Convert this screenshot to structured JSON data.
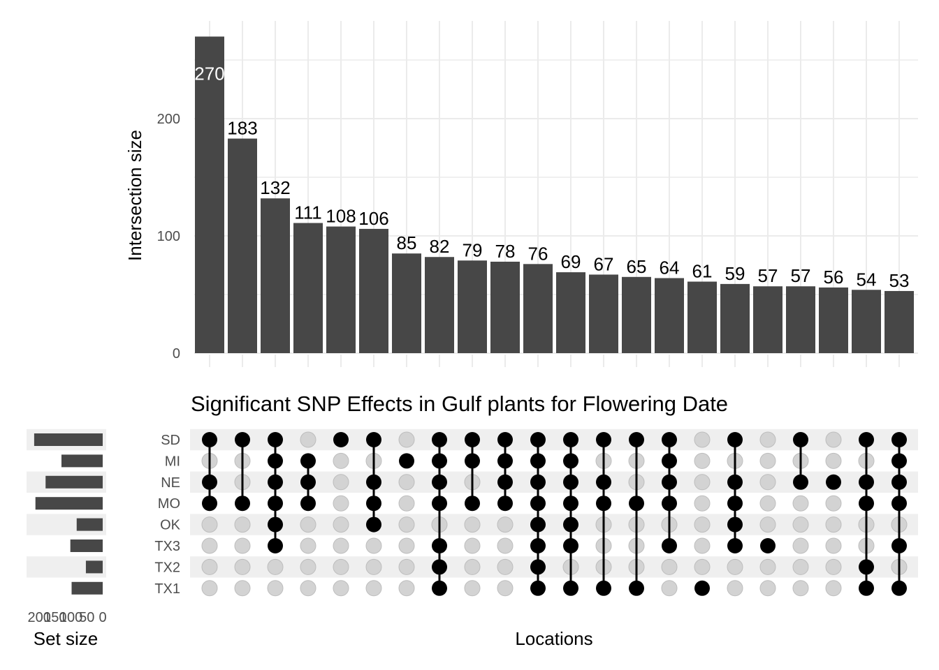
{
  "chart_data": {
    "type": "upset",
    "title": "Significant SNP Effects in Gulf plants for Flowering Date",
    "ylabel": "Intersection size",
    "xlabel": "Locations",
    "set_size_label": "Set size",
    "ylim": [
      0,
      280
    ],
    "y_ticks": [
      0,
      100,
      200
    ],
    "set_size_ticks": [
      "200",
      "150",
      "100",
      "50",
      "0"
    ],
    "set_size_max": 240,
    "grid": true,
    "sets": [
      "SD",
      "MI",
      "NE",
      "MO",
      "OK",
      "TX3",
      "TX2",
      "TX1"
    ],
    "set_sizes": [
      216,
      130,
      180,
      212,
      82,
      102,
      53,
      98
    ],
    "intersections": [
      {
        "value": 270,
        "sets": [
          "SD",
          "NE",
          "MO"
        ]
      },
      {
        "value": 183,
        "sets": [
          "SD",
          "MO"
        ]
      },
      {
        "value": 132,
        "sets": [
          "SD",
          "MI",
          "NE",
          "MO",
          "OK",
          "TX3"
        ]
      },
      {
        "value": 111,
        "sets": [
          "MI",
          "NE",
          "MO"
        ]
      },
      {
        "value": 108,
        "sets": [
          "SD"
        ]
      },
      {
        "value": 106,
        "sets": [
          "SD",
          "NE",
          "MO",
          "OK"
        ]
      },
      {
        "value": 85,
        "sets": [
          "MI"
        ]
      },
      {
        "value": 82,
        "sets": [
          "SD",
          "MI",
          "NE",
          "MO",
          "TX3",
          "TX2",
          "TX1"
        ]
      },
      {
        "value": 79,
        "sets": [
          "SD",
          "MI",
          "MO"
        ]
      },
      {
        "value": 78,
        "sets": [
          "SD",
          "MI",
          "NE",
          "MO"
        ]
      },
      {
        "value": 76,
        "sets": [
          "SD",
          "MI",
          "NE",
          "MO",
          "OK",
          "TX3",
          "TX2",
          "TX1"
        ]
      },
      {
        "value": 69,
        "sets": [
          "SD",
          "MI",
          "NE",
          "MO",
          "OK",
          "TX3",
          "TX1"
        ]
      },
      {
        "value": 67,
        "sets": [
          "SD",
          "NE",
          "MO",
          "TX1"
        ]
      },
      {
        "value": 65,
        "sets": [
          "SD",
          "MO",
          "TX1"
        ]
      },
      {
        "value": 64,
        "sets": [
          "SD",
          "MI",
          "NE",
          "MO",
          "TX3"
        ]
      },
      {
        "value": 61,
        "sets": [
          "TX1"
        ]
      },
      {
        "value": 59,
        "sets": [
          "SD",
          "NE",
          "MO",
          "OK",
          "TX3"
        ]
      },
      {
        "value": 57,
        "sets": [
          "TX3"
        ]
      },
      {
        "value": 57,
        "sets": [
          "SD",
          "NE"
        ]
      },
      {
        "value": 56,
        "sets": [
          "NE"
        ]
      },
      {
        "value": 54,
        "sets": [
          "SD",
          "NE",
          "MO",
          "TX2",
          "TX1"
        ]
      },
      {
        "value": 53,
        "sets": [
          "SD",
          "MI",
          "NE",
          "MO",
          "TX3",
          "TX1"
        ]
      }
    ],
    "colors": {
      "bar": "#474747",
      "dot_active": "#000000",
      "dot_inactive": "#d3d3d3",
      "grid": "#ebebeb",
      "row_band": "#efefef",
      "value_label_inside": "#ffffff",
      "value_label": "#000000"
    }
  }
}
